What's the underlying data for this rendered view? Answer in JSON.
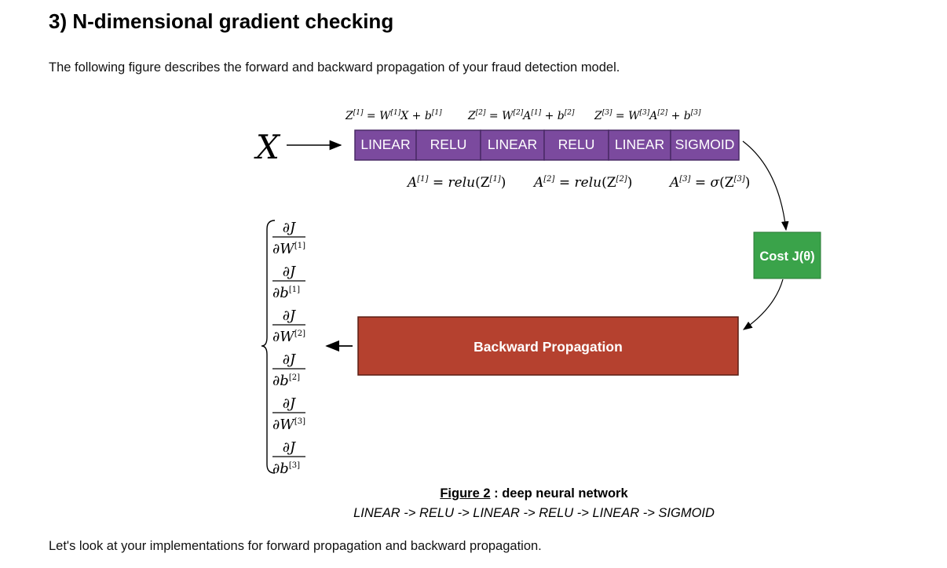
{
  "section_heading": "3) N-dimensional gradient checking",
  "intro_text": "The following figure describes the forward and backward propagation of your fraud detection model.",
  "figure": {
    "input_label": "X",
    "layers": [
      "LINEAR",
      "RELU",
      "LINEAR",
      "RELU",
      "LINEAR",
      "SIGMOID"
    ],
    "z_equations": [
      {
        "lhs": "Z",
        "l": "[1]",
        "rhs_a": "W",
        "rhs_a_l": "[1]",
        "mid": "X",
        "mid_l": "",
        "b": "b",
        "b_l": "[1]"
      },
      {
        "lhs": "Z",
        "l": "[2]",
        "rhs_a": "W",
        "rhs_a_l": "[2]",
        "mid": "A",
        "mid_l": "[1]",
        "b": "b",
        "b_l": "[2]"
      },
      {
        "lhs": "Z",
        "l": "[3]",
        "rhs_a": "W",
        "rhs_a_l": "[3]",
        "mid": "A",
        "mid_l": "[2]",
        "b": "b",
        "b_l": "[3]"
      }
    ],
    "a_equations": [
      {
        "l": "[1]",
        "fn": "relu",
        "zl": "[1]"
      },
      {
        "l": "[2]",
        "fn": "relu",
        "zl": "[2]"
      },
      {
        "l": "[3]",
        "fn": "σ",
        "zl": "[3]"
      }
    ],
    "cost_label": "Cost J(θ)",
    "backward_label": "Backward Propagation",
    "gradients": [
      {
        "den": "∂W",
        "l": "[1]"
      },
      {
        "den": "∂b",
        "l": "[1]"
      },
      {
        "den": "∂W",
        "l": "[2]"
      },
      {
        "den": "∂b",
        "l": "[2]"
      },
      {
        "den": "∂W",
        "l": "[3]"
      },
      {
        "den": "∂b",
        "l": "[3]"
      }
    ],
    "gradient_numerator": "∂J",
    "colors": {
      "layer_fill": "#7b4a9e",
      "layer_border": "#4a2a66",
      "cost_fill": "#3aa34a",
      "backward_fill": "#b5412f",
      "backward_border": "#5a1e14"
    }
  },
  "caption": {
    "figure_label": "Figure 2",
    "figure_sep": " : ",
    "figure_title": "deep neural network",
    "sequence": "LINEAR -> RELU -> LINEAR -> RELU -> LINEAR -> SIGMOID"
  },
  "outro_text": "Let's look at your implementations for forward propagation and backward propagation."
}
